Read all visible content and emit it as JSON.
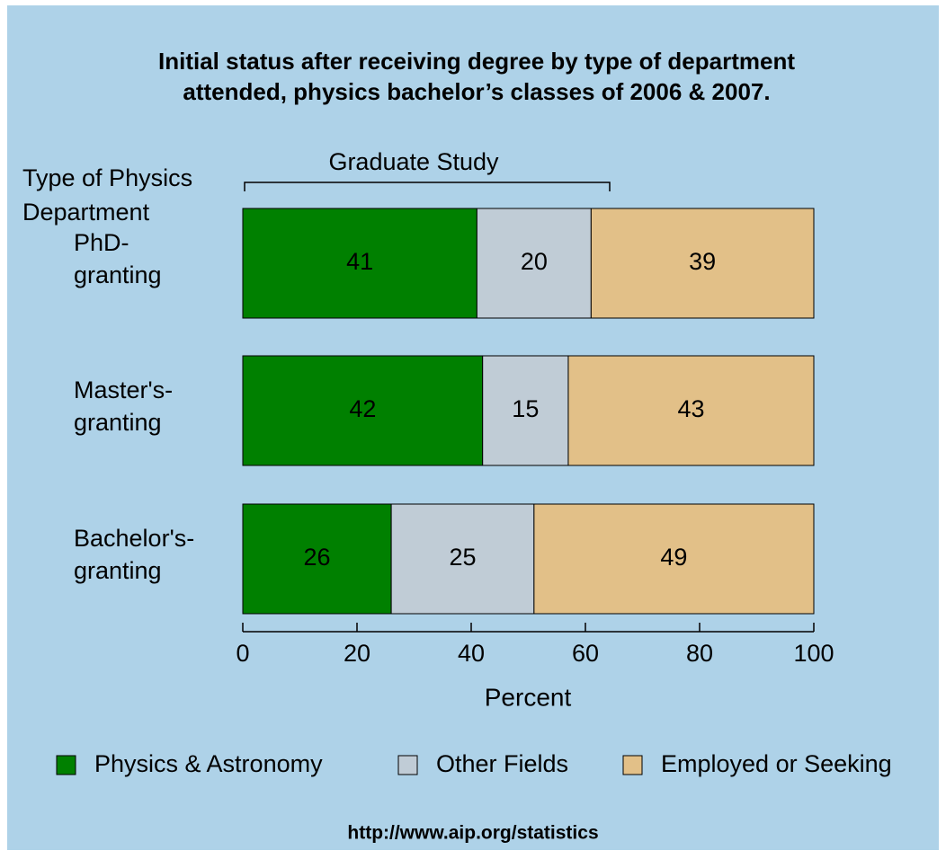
{
  "chart_data": {
    "type": "stacked-barh",
    "title": [
      "Initial status after receiving degree by type of department",
      "attended, physics bachelor’s classes of 2006 & 2007."
    ],
    "y_label": [
      "Type of Physics",
      "Department"
    ],
    "annotation": "Graduate Study",
    "x_label": "Percent",
    "categories": [
      "PhD-granting",
      "Master's-granting",
      "Bachelor's-granting"
    ],
    "series": [
      {
        "name": "Physics & Astronomy",
        "color": "#008000",
        "label_color": "#ffffff",
        "values": [
          41,
          42,
          26
        ]
      },
      {
        "name": "Other Fields",
        "color": "#c0ccd6",
        "label_color": "#000000",
        "values": [
          20,
          15,
          25
        ]
      },
      {
        "name": "Employed or Seeking",
        "color": "#e2c088",
        "label_color": "#000000",
        "values": [
          39,
          43,
          49
        ]
      }
    ],
    "xlim": [
      0,
      100
    ],
    "xticks": [
      0,
      20,
      40,
      60,
      80,
      100
    ],
    "legend": "bottom",
    "footer": "http://www.aip.org/statistics"
  }
}
